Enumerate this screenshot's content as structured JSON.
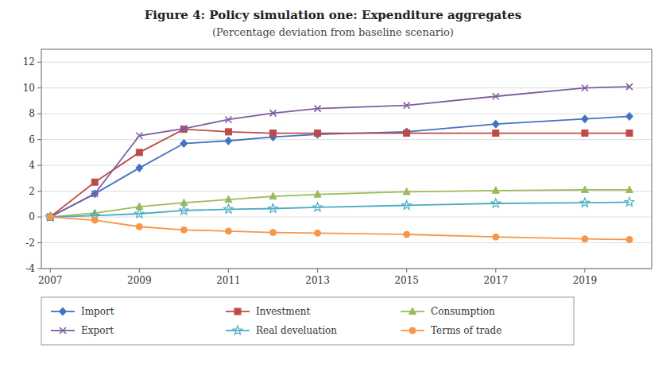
{
  "chart_data": {
    "type": "line",
    "title": "Figure 4: Policy simulation one: Expenditure aggregates",
    "subtitle": "(Percentage deviation from baseline scenario)",
    "x": [
      2007,
      2008,
      2009,
      2010,
      2011,
      2012,
      2013,
      2015,
      2017,
      2019,
      2020
    ],
    "series": [
      {
        "name": "Import",
        "color": "#4472C4",
        "marker": "diamond",
        "values": [
          0.0,
          1.8,
          3.8,
          5.7,
          5.9,
          6.2,
          6.4,
          6.6,
          7.2,
          7.6,
          7.8
        ]
      },
      {
        "name": "Investment",
        "color": "#BE4B48",
        "marker": "square",
        "values": [
          0.0,
          2.7,
          5.0,
          6.8,
          6.6,
          6.5,
          6.5,
          6.5,
          6.5,
          6.5,
          6.5
        ]
      },
      {
        "name": "Consumption",
        "color": "#9BBB59",
        "marker": "triangle",
        "values": [
          0.0,
          0.3,
          0.8,
          1.1,
          1.35,
          1.6,
          1.75,
          1.95,
          2.05,
          2.1,
          2.1
        ]
      },
      {
        "name": "Export",
        "color": "#7E5EA0",
        "marker": "x",
        "values": [
          0.0,
          1.8,
          6.3,
          6.85,
          7.55,
          8.05,
          8.4,
          8.65,
          9.35,
          10.0,
          10.1
        ]
      },
      {
        "name": "Real develuation",
        "color": "#4BACC6",
        "marker": "star",
        "values": [
          0.0,
          0.1,
          0.25,
          0.5,
          0.6,
          0.65,
          0.75,
          0.9,
          1.05,
          1.1,
          1.15
        ]
      },
      {
        "name": "Terms of trade",
        "color": "#F79646",
        "marker": "circle",
        "values": [
          0.0,
          -0.25,
          -0.75,
          -1.0,
          -1.1,
          -1.2,
          -1.25,
          -1.35,
          -1.55,
          -1.7,
          -1.75
        ]
      }
    ],
    "xlim": [
      2006.8,
      2020.5
    ],
    "xticks": [
      2007,
      2009,
      2011,
      2013,
      2015,
      2017,
      2019
    ],
    "ylim": [
      -4,
      13
    ],
    "yticks": [
      -4,
      -2,
      0,
      2,
      4,
      6,
      8,
      10,
      12
    ],
    "grid": true,
    "legend": "bottom"
  }
}
